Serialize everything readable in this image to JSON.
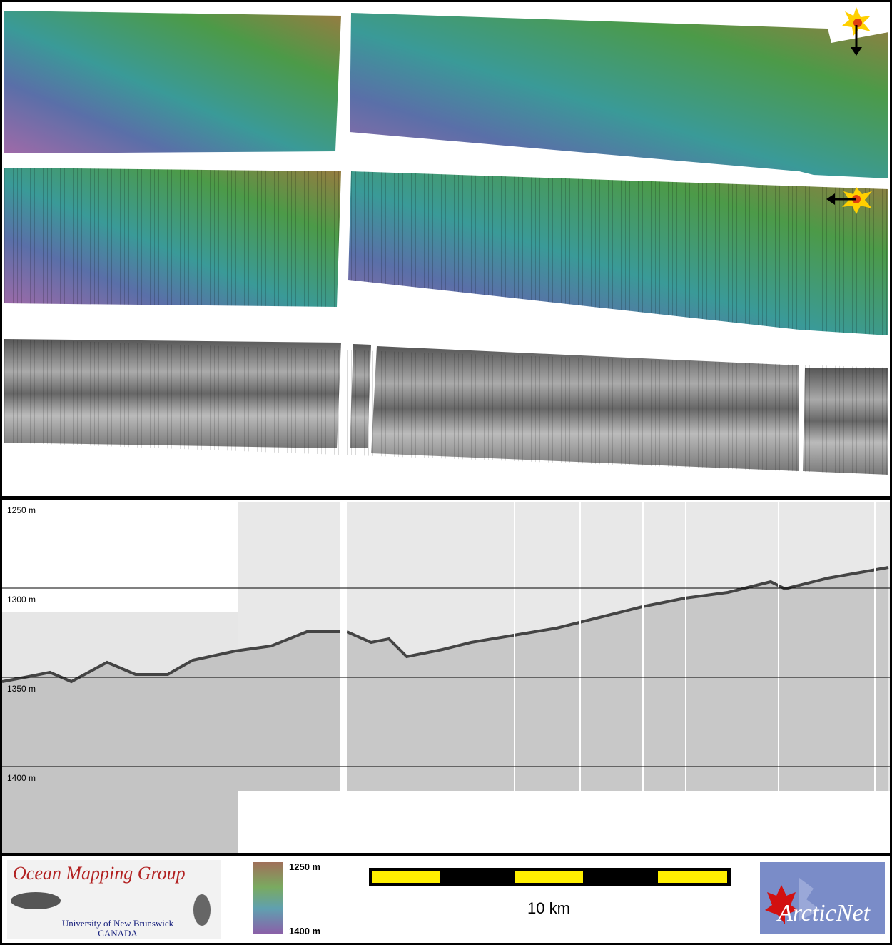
{
  "profile": {
    "depth_labels": [
      "1250 m",
      "1300 m",
      "1350 m",
      "1400 m"
    ]
  },
  "footer": {
    "logo_left": {
      "title": "Ocean Mapping Group",
      "line1": "University of New Brunswick",
      "line2": "CANADA"
    },
    "colorbar": {
      "top_label": "1250 m",
      "bottom_label": "1400 m"
    },
    "scale_bar": {
      "label": "10 km"
    },
    "logo_right": {
      "title": "ArcticNet"
    }
  }
}
